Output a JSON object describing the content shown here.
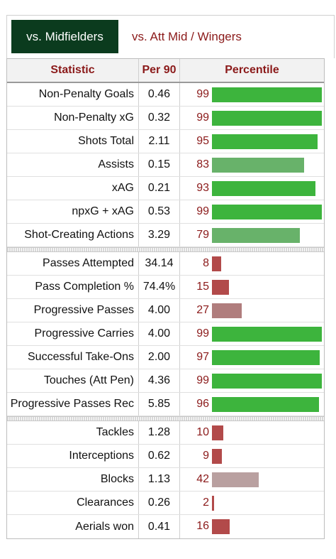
{
  "tabs": {
    "active": "vs. Midfielders",
    "other": "vs. Att Mid / Wingers"
  },
  "header": {
    "statistic": "Statistic",
    "per90": "Per 90",
    "percentile": "Percentile"
  },
  "colors": {
    "high": "#3db43d",
    "mid_high": "#68b26a",
    "low": "#b24a4a",
    "mid_low": "#b07d7d",
    "neutral_low": "#b9a0a0",
    "tab_active_bg": "#0b3b1e",
    "accent_text": "#8b1a1a"
  },
  "groups": [
    {
      "rows": [
        {
          "stat": "Non-Penalty Goals",
          "per90": "0.46",
          "pct": "99",
          "pct_value": 99,
          "color": "#3db43d"
        },
        {
          "stat": "Non-Penalty xG",
          "per90": "0.32",
          "pct": "99",
          "pct_value": 99,
          "color": "#3db43d"
        },
        {
          "stat": "Shots Total",
          "per90": "2.11",
          "pct": "95",
          "pct_value": 95,
          "color": "#3db43d"
        },
        {
          "stat": "Assists",
          "per90": "0.15",
          "pct": "83",
          "pct_value": 83,
          "color": "#68b26a"
        },
        {
          "stat": "xAG",
          "per90": "0.21",
          "pct": "93",
          "pct_value": 93,
          "color": "#3db43d"
        },
        {
          "stat": "npxG + xAG",
          "per90": "0.53",
          "pct": "99",
          "pct_value": 99,
          "color": "#3db43d"
        },
        {
          "stat": "Shot-Creating Actions",
          "per90": "3.29",
          "pct": "79",
          "pct_value": 79,
          "color": "#68b26a"
        }
      ]
    },
    {
      "rows": [
        {
          "stat": "Passes Attempted",
          "per90": "34.14",
          "pct": "8",
          "pct_value": 8,
          "color": "#b24a4a"
        },
        {
          "stat": "Pass Completion %",
          "per90": "74.4%",
          "pct": "15",
          "pct_value": 15,
          "color": "#b24a4a"
        },
        {
          "stat": "Progressive Passes",
          "per90": "4.00",
          "pct": "27",
          "pct_value": 27,
          "color": "#b07d7d"
        },
        {
          "stat": "Progressive Carries",
          "per90": "4.00",
          "pct": "99",
          "pct_value": 99,
          "color": "#3db43d"
        },
        {
          "stat": "Successful Take-Ons",
          "per90": "2.00",
          "pct": "97",
          "pct_value": 97,
          "color": "#3db43d"
        },
        {
          "stat": "Touches (Att Pen)",
          "per90": "4.36",
          "pct": "99",
          "pct_value": 99,
          "color": "#3db43d"
        },
        {
          "stat": "Progressive Passes Rec",
          "per90": "5.85",
          "pct": "96",
          "pct_value": 96,
          "color": "#3db43d"
        }
      ]
    },
    {
      "rows": [
        {
          "stat": "Tackles",
          "per90": "1.28",
          "pct": "10",
          "pct_value": 10,
          "color": "#b24a4a"
        },
        {
          "stat": "Interceptions",
          "per90": "0.62",
          "pct": "9",
          "pct_value": 9,
          "color": "#b24a4a"
        },
        {
          "stat": "Blocks",
          "per90": "1.13",
          "pct": "42",
          "pct_value": 42,
          "color": "#b9a0a0"
        },
        {
          "stat": "Clearances",
          "per90": "0.26",
          "pct": "2",
          "pct_value": 2,
          "color": "#b24a4a"
        },
        {
          "stat": "Aerials won",
          "per90": "0.41",
          "pct": "16",
          "pct_value": 16,
          "color": "#b24a4a"
        }
      ]
    }
  ]
}
